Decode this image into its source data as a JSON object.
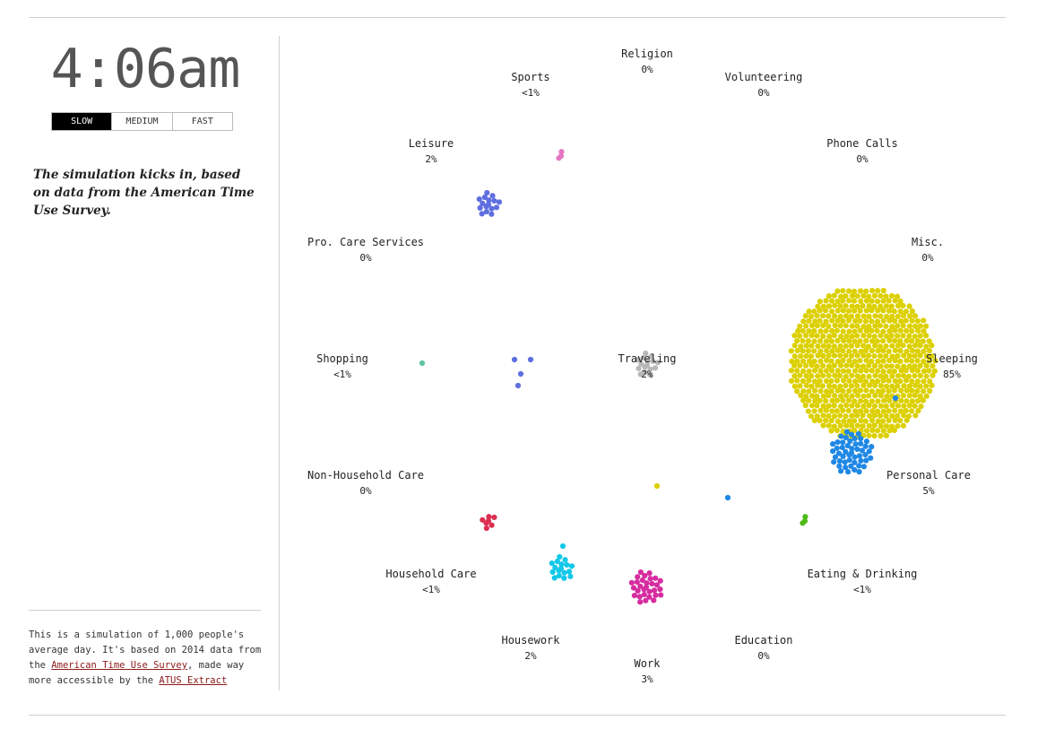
{
  "clock": {
    "time": "4:06am"
  },
  "speed": {
    "options": [
      "SLOW",
      "MEDIUM",
      "FAST"
    ],
    "selected": "SLOW"
  },
  "narrative": "The simulation kicks in, based on data from the American Time Use Survey.",
  "footer": {
    "text_1": "This is a simulation of 1,000 people's average day. It's based on 2014 data from the ",
    "link_1": "American Time Use Survey",
    "text_2": ", made way more accessible by the ",
    "link_2": "ATUS Extract"
  },
  "activities": [
    {
      "name": "Religion",
      "pct": "0%",
      "color": "#bbbbbb",
      "count": 0
    },
    {
      "name": "Sports",
      "pct": "<1%",
      "color": "#e377c2",
      "count": 3
    },
    {
      "name": "Volunteering",
      "pct": "0%",
      "color": "#bbbbbb",
      "count": 0
    },
    {
      "name": "Leisure",
      "pct": "2%",
      "color": "#5f6ee0",
      "count": 16
    },
    {
      "name": "Phone Calls",
      "pct": "0%",
      "color": "#bbbbbb",
      "count": 0
    },
    {
      "name": "Pro. Care Services",
      "pct": "0%",
      "color": "#bbbbbb",
      "count": 0
    },
    {
      "name": "Misc.",
      "pct": "0%",
      "color": "#bbbbbb",
      "count": 0
    },
    {
      "name": "Shopping",
      "pct": "<1%",
      "color": "#5fc4a0",
      "count": 1
    },
    {
      "name": "Traveling",
      "pct": "2%",
      "color": "#b8b8b8",
      "count": 16
    },
    {
      "name": "Sleeping",
      "pct": "85%",
      "color": "#dcd000",
      "count": 850
    },
    {
      "name": "Non-Household Care",
      "pct": "0%",
      "color": "#bbbbbb",
      "count": 0
    },
    {
      "name": "Personal Care",
      "pct": "5%",
      "color": "#1f88e5",
      "count": 50
    },
    {
      "name": "Household Care",
      "pct": "<1%",
      "color": "#dc2f4f",
      "count": 7
    },
    {
      "name": "Eating & Drinking",
      "pct": "<1%",
      "color": "#4cbb17",
      "count": 3
    },
    {
      "name": "Housework",
      "pct": "2%",
      "color": "#12c8e8",
      "count": 17
    },
    {
      "name": "Education",
      "pct": "0%",
      "color": "#bbbbbb",
      "count": 0
    },
    {
      "name": "Work",
      "pct": "3%",
      "color": "#d62ca0",
      "count": 30
    }
  ]
}
